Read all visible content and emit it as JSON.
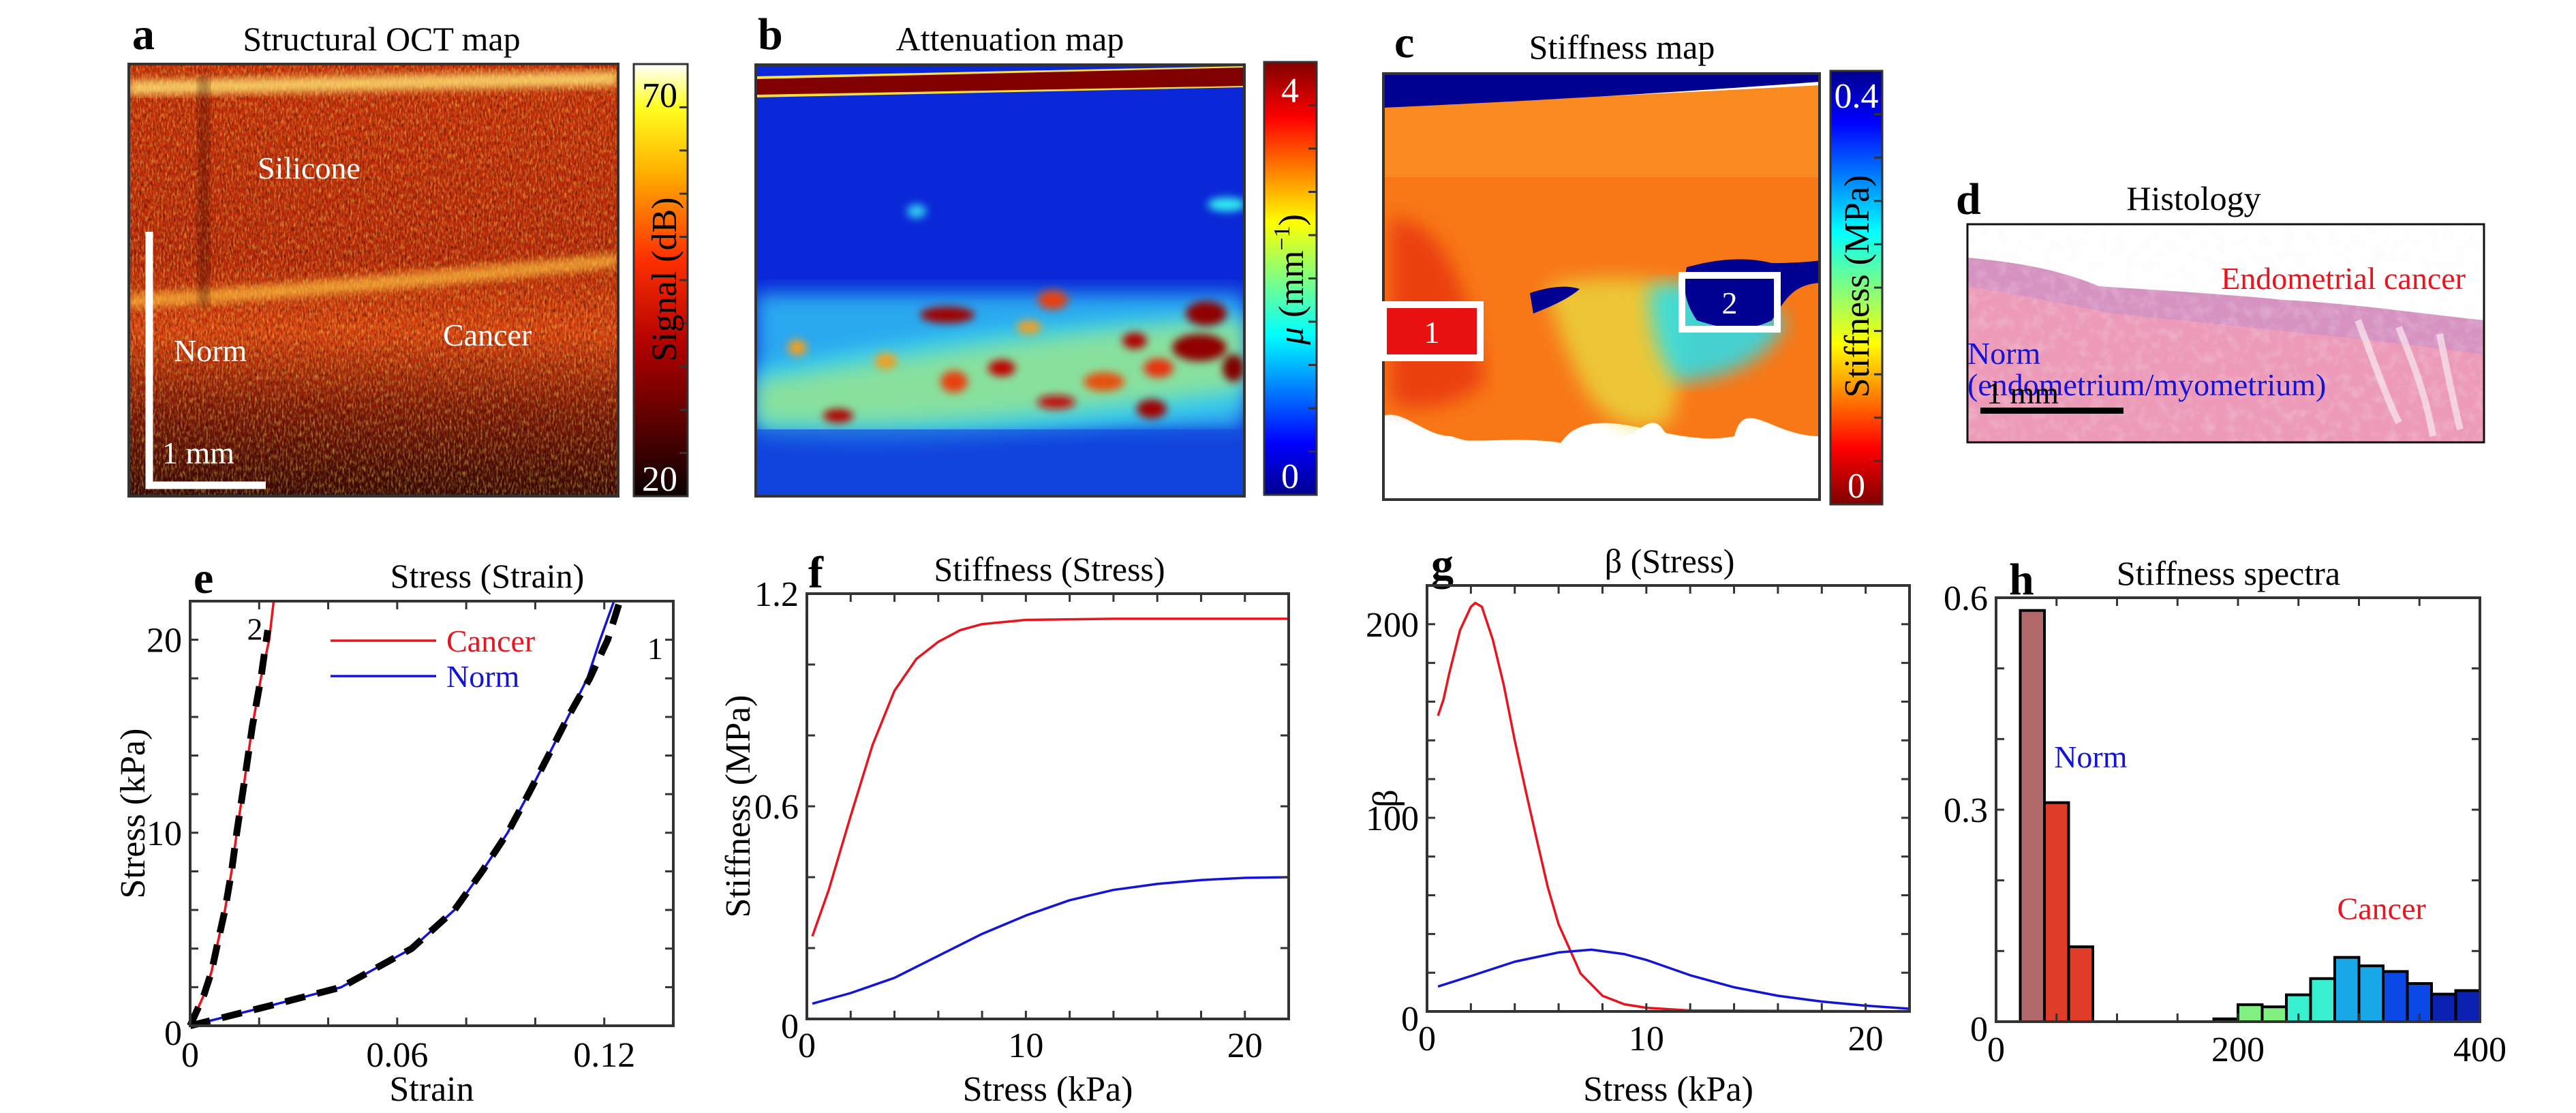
{
  "figure": {
    "panels": {
      "a": {
        "letter": "a",
        "title": "Structural OCT map",
        "labels": {
          "silicone": "Silicone",
          "norm": "Norm",
          "cancer": "Cancer",
          "scale": "1 mm"
        },
        "colorbar": {
          "label": "Signal (dB)",
          "max_label": "70",
          "min_label": "20",
          "range": [
            20,
            70
          ],
          "colormap": "hot"
        }
      },
      "b": {
        "letter": "b",
        "title": "Attenuation map",
        "colorbar": {
          "label": "μ (mm⁻¹)",
          "label_symbol": "μ",
          "label_unit": "(mm",
          "label_exp": "−1",
          "label_close": ")",
          "max_label": "4",
          "min_label": "0",
          "range": [
            0,
            4
          ],
          "colormap": "jet"
        }
      },
      "c": {
        "letter": "c",
        "title": "Stiffness map",
        "regions": [
          {
            "label": "1"
          },
          {
            "label": "2"
          }
        ],
        "colorbar": {
          "label": "Stiffness (MPa)",
          "max_label": "0.4",
          "min_label": "0",
          "range": [
            0,
            0.4
          ],
          "colormap": "jet-reversed"
        }
      },
      "d": {
        "letter": "d",
        "title": "Histology",
        "labels": {
          "cancer": "Endometrial cancer",
          "norm_line1": "Norm",
          "norm_line2": "(endometrium/myometrium)",
          "scale": "1 mm"
        }
      },
      "e": {
        "letter": "e"
      },
      "f": {
        "letter": "f"
      },
      "g": {
        "letter": "g"
      },
      "h": {
        "letter": "h"
      }
    },
    "colors": {
      "cancer": "#e8141e",
      "norm": "#1414d8",
      "fit": "#000000"
    }
  },
  "chart_data": [
    {
      "id": "e",
      "type": "line",
      "title": "Stress (Strain)",
      "xlabel": "Strain",
      "ylabel": "Stress (kPa)",
      "xlim": [
        0,
        0.14
      ],
      "ylim": [
        0,
        22
      ],
      "xticks": [
        0,
        0.06,
        0.12
      ],
      "xtick_labels": [
        "0",
        "0.06",
        "0.12"
      ],
      "xminor": [
        0.02,
        0.04,
        0.08,
        0.1
      ],
      "yticks": [
        0,
        10,
        20
      ],
      "ytick_labels": [
        "0",
        "10",
        "20"
      ],
      "yminor": [
        2,
        4,
        6,
        8,
        12,
        14,
        16,
        18
      ],
      "legend": [
        {
          "name": "Cancer",
          "color": "#e8141e"
        },
        {
          "name": "Norm",
          "color": "#1414d8"
        }
      ],
      "legend_position": "top-center",
      "annotations": [
        {
          "text": "2",
          "x": 0.0165,
          "y": 20
        },
        {
          "text": "1",
          "x": 0.1325,
          "y": 19
        }
      ],
      "series": [
        {
          "name": "Cancer",
          "color": "#e8141e",
          "x": [
            0,
            0.002,
            0.004,
            0.0062,
            0.008,
            0.0101,
            0.012,
            0.0135,
            0.016,
            0.018,
            0.0205,
            0.0229,
            0.0242
          ],
          "y": [
            0,
            0.8,
            1.6,
            2.8,
            4.3,
            6,
            8,
            10,
            13,
            15.5,
            18,
            20,
            22
          ]
        },
        {
          "name": "Norm",
          "color": "#1414d8",
          "x": [
            0,
            0.01,
            0.0223,
            0.0438,
            0.0642,
            0.0766,
            0.0846,
            0.092,
            0.098,
            0.1038,
            0.1095,
            0.1151,
            0.1188,
            0.1228
          ],
          "y": [
            0,
            0.45,
            1,
            2,
            4,
            6,
            8,
            10,
            12,
            14,
            16,
            18,
            20,
            22
          ]
        },
        {
          "name": "Fit 2",
          "color": "#000000",
          "dashed": true,
          "x": [
            0,
            0.002,
            0.004,
            0.0062,
            0.008,
            0.0101,
            0.012,
            0.0135,
            0.016,
            0.018,
            0.0205,
            0.0225
          ],
          "y": [
            0,
            0.8,
            1.6,
            2.8,
            4.3,
            6,
            8,
            10,
            13,
            15.5,
            18,
            20.5
          ]
        },
        {
          "name": "Fit 1",
          "color": "#000000",
          "dashed": true,
          "x": [
            0,
            0.01,
            0.0223,
            0.0438,
            0.0642,
            0.0766,
            0.0846,
            0.092,
            0.098,
            0.1038,
            0.1095,
            0.1158,
            0.121,
            0.1245
          ],
          "y": [
            0,
            0.45,
            1,
            2,
            4,
            6,
            8,
            10,
            12,
            14,
            16,
            18,
            20,
            22
          ]
        }
      ]
    },
    {
      "id": "f",
      "type": "line",
      "title": "Stiffness (Stress)",
      "xlabel": "Stress (kPa)",
      "ylabel": "Stiffness (MPa)",
      "xlim": [
        0,
        22
      ],
      "ylim": [
        0,
        1.2
      ],
      "xticks": [
        0,
        10,
        20
      ],
      "xtick_labels": [
        "0",
        "10",
        "20"
      ],
      "xminor": [
        2,
        4,
        6,
        8,
        12,
        14,
        16,
        18
      ],
      "yticks": [
        0,
        0.6,
        1.2
      ],
      "ytick_labels": [
        "0",
        "0.6",
        "1.2"
      ],
      "yminor": [
        0.2,
        0.4,
        0.8,
        1.0
      ],
      "series": [
        {
          "name": "Cancer",
          "color": "#e8141e",
          "x": [
            0.25,
            1,
            2,
            3,
            4,
            5,
            6,
            7,
            8,
            10,
            14,
            22
          ],
          "y": [
            0.233,
            0.364,
            0.573,
            0.773,
            0.926,
            1.016,
            1.064,
            1.097,
            1.114,
            1.126,
            1.129,
            1.129
          ]
        },
        {
          "name": "Norm",
          "color": "#1414d8",
          "x": [
            0.25,
            2,
            4,
            6,
            8,
            10,
            12,
            14,
            16,
            18,
            20,
            22
          ],
          "y": [
            0.043,
            0.073,
            0.116,
            0.178,
            0.24,
            0.292,
            0.335,
            0.364,
            0.381,
            0.392,
            0.398,
            0.4
          ]
        }
      ]
    },
    {
      "id": "g",
      "type": "line",
      "title": "β (Stress)",
      "xlabel": "Stress (kPa)",
      "ylabel": "β",
      "xlim": [
        0,
        22
      ],
      "ylim": [
        0,
        220
      ],
      "xticks": [
        0,
        10,
        20
      ],
      "xtick_labels": [
        "0",
        "10",
        "20"
      ],
      "xminor": [
        2,
        4,
        6,
        8,
        12,
        14,
        16,
        18
      ],
      "yticks": [
        0,
        100,
        200
      ],
      "ytick_labels": [
        "0",
        "100",
        "200"
      ],
      "yminor": [
        20,
        40,
        60,
        80,
        120,
        140,
        160,
        180
      ],
      "series": [
        {
          "name": "Cancer",
          "color": "#e8141e",
          "x": [
            0.5,
            0.75,
            1,
            1.5,
            2,
            2.2,
            2.5,
            3,
            3.5,
            4,
            4.5,
            5,
            5.5,
            6,
            7,
            8,
            9,
            10,
            12,
            22
          ],
          "y": [
            152.7,
            161,
            174,
            196.8,
            209,
            211,
            209,
            192,
            168.6,
            140,
            114,
            89,
            64.5,
            45,
            19.6,
            8.1,
            3.7,
            1.9,
            0.5,
            0
          ]
        },
        {
          "name": "Norm",
          "color": "#1414d8",
          "x": [
            0.5,
            2,
            4,
            6,
            7.5,
            9,
            10,
            12,
            14,
            16,
            18,
            20,
            22
          ],
          "y": [
            12.9,
            18.3,
            25.7,
            30.5,
            31.9,
            29.6,
            26.6,
            18.7,
            12.5,
            8.1,
            5.1,
            3,
            1.4
          ]
        }
      ]
    },
    {
      "id": "h",
      "type": "bar",
      "title": "Stiffness spectra",
      "xlabel": "",
      "ylabel": "",
      "xlim": [
        0,
        400
      ],
      "ylim": [
        0,
        0.6
      ],
      "xticks": [
        0,
        200,
        400
      ],
      "xtick_labels": [
        "0",
        "200",
        "400"
      ],
      "xminor": [
        50,
        100,
        150,
        250,
        300,
        350
      ],
      "yticks": [
        0,
        0.3,
        0.6
      ],
      "ytick_labels": [
        "0",
        "0.3",
        "0.6"
      ],
      "yminor": [
        0.1,
        0.2,
        0.4,
        0.5
      ],
      "bin_width": 20,
      "annotations": [
        {
          "text": "Norm",
          "color": "#1414d8",
          "x": 48,
          "y": 0.36
        },
        {
          "text": "Cancer",
          "color": "#e8141e",
          "x": 282,
          "y": 0.145
        }
      ],
      "bars": [
        {
          "x0": 20,
          "value": 0.582,
          "color": "#b06868"
        },
        {
          "x0": 40,
          "value": 0.31,
          "color": "#e03c2a"
        },
        {
          "x0": 60,
          "value": 0.106,
          "color": "#e03c2a"
        },
        {
          "x0": 180,
          "value": 0.004,
          "color": "#1e5a1e"
        },
        {
          "x0": 200,
          "value": 0.024,
          "color": "#80f080"
        },
        {
          "x0": 220,
          "value": 0.021,
          "color": "#80f080"
        },
        {
          "x0": 240,
          "value": 0.038,
          "color": "#38f0d0"
        },
        {
          "x0": 260,
          "value": 0.061,
          "color": "#38f0d0"
        },
        {
          "x0": 280,
          "value": 0.091,
          "color": "#18a8e8"
        },
        {
          "x0": 300,
          "value": 0.079,
          "color": "#18a8e8"
        },
        {
          "x0": 320,
          "value": 0.071,
          "color": "#0a48e8"
        },
        {
          "x0": 340,
          "value": 0.054,
          "color": "#0a48e8"
        },
        {
          "x0": 360,
          "value": 0.039,
          "color": "#0a20b0"
        },
        {
          "x0": 380,
          "value": 0.044,
          "color": "#0a20b0"
        }
      ]
    }
  ]
}
